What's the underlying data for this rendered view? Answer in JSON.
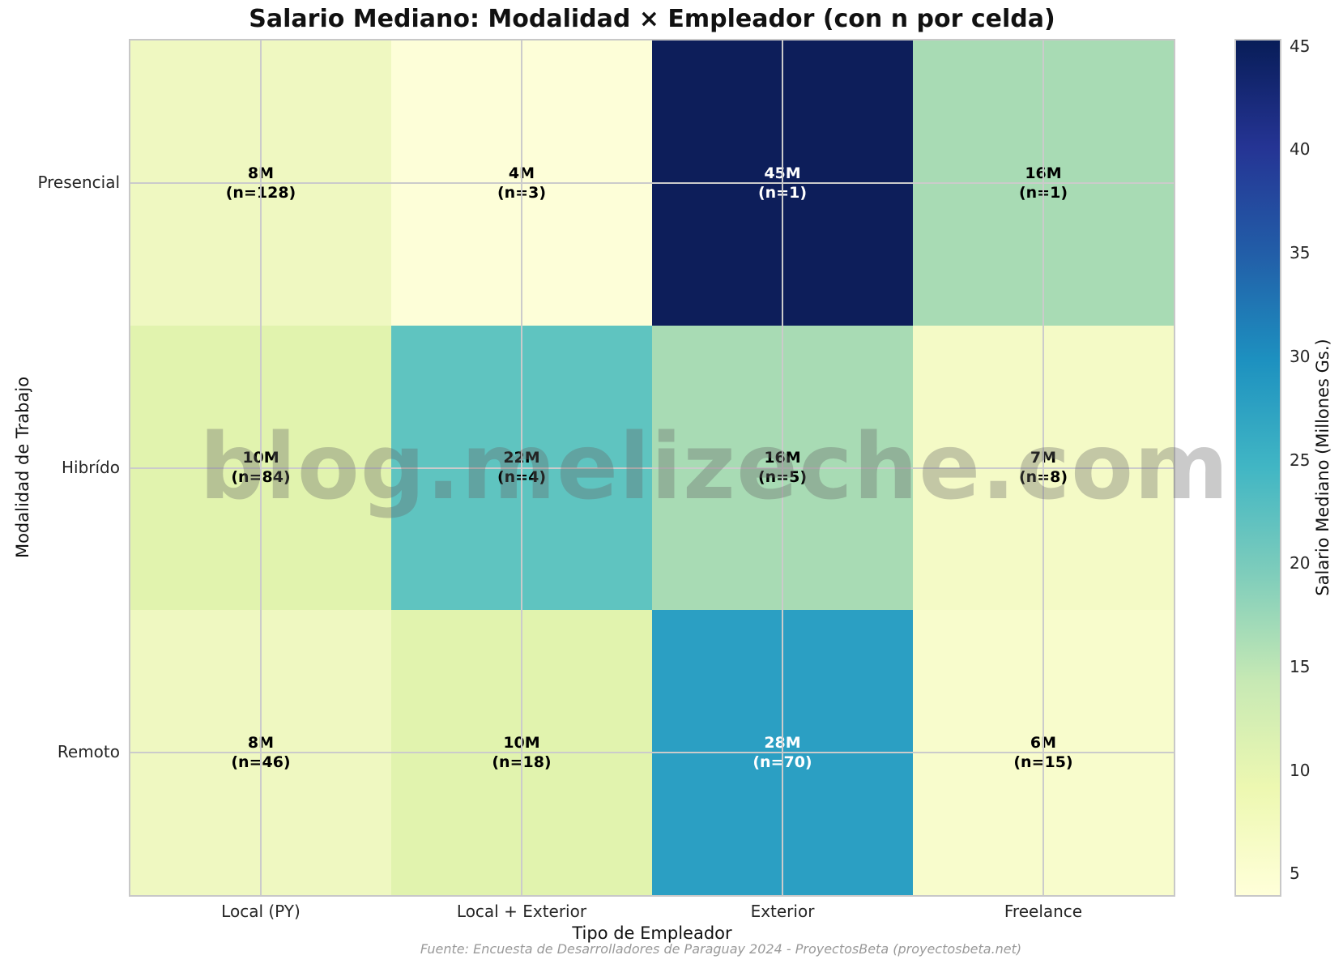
{
  "title": "Salario Mediano: Modalidad × Empleador (con n por celda)",
  "watermark": "blog.melizeche.com",
  "source": "Fuente: Encuesta de Desarrolladores de Paraguay 2024 - ProyectosBeta (proyectosbeta.net)",
  "chart_data": {
    "type": "heatmap",
    "title": "Salario Mediano: Modalidad × Empleador (con n por celda)",
    "xlabel": "Tipo de Empleador",
    "ylabel": "Modalidad de Trabajo",
    "x_categories": [
      "Local (PY)",
      "Local + Exterior",
      "Exterior",
      "Freelance"
    ],
    "y_categories": [
      "Presencial",
      "Hibrído",
      "Remoto"
    ],
    "values_millions_gs": [
      [
        8,
        4,
        45,
        16
      ],
      [
        10,
        22,
        16,
        7
      ],
      [
        8,
        10,
        28,
        6
      ]
    ],
    "sample_sizes_n": [
      [
        128,
        3,
        1,
        1
      ],
      [
        84,
        4,
        5,
        8
      ],
      [
        46,
        18,
        70,
        15
      ]
    ],
    "cell_value_labels": [
      [
        "8M",
        "4M",
        "45M",
        "16M"
      ],
      [
        "10M",
        "22M",
        "16M",
        "7M"
      ],
      [
        "8M",
        "10M",
        "28M",
        "6M"
      ]
    ],
    "cell_n_labels": [
      [
        "(n=128)",
        "(n=3)",
        "(n=1)",
        "(n=1)"
      ],
      [
        "(n=84)",
        "(n=4)",
        "(n=5)",
        "(n=8)"
      ],
      [
        "(n=46)",
        "(n=18)",
        "(n=70)",
        "(n=15)"
      ]
    ],
    "cell_colors": [
      [
        "#eff8c1",
        "#fdfed8",
        "#0d1e5a",
        "#a8dbb4"
      ],
      [
        "#e1f3ae",
        "#5fc4c0",
        "#a8dbb4",
        "#f4fac6"
      ],
      [
        "#eff8c1",
        "#e1f3ae",
        "#2b9fc3",
        "#f8fccc"
      ]
    ],
    "cell_text_colors": [
      [
        "#000000",
        "#000000",
        "#ffffff",
        "#000000"
      ],
      [
        "#000000",
        "#000000",
        "#000000",
        "#000000"
      ],
      [
        "#000000",
        "#000000",
        "#ffffff",
        "#000000"
      ]
    ],
    "grid": true,
    "grid_color": "#cbcbcb",
    "colorbar": {
      "label": "Salario Mediano (Millones Gs.)",
      "ticks": [
        5,
        10,
        15,
        20,
        25,
        30,
        35,
        40,
        45
      ],
      "vmin": 4,
      "vmax": 45.3,
      "colormap": "YlGnBu",
      "colormap_stops": [
        "#ffffd9",
        "#edf8b1",
        "#c7e9b4",
        "#7fcdbb",
        "#41b6c4",
        "#1d91c0",
        "#225ea8",
        "#253494",
        "#081d58"
      ]
    }
  }
}
